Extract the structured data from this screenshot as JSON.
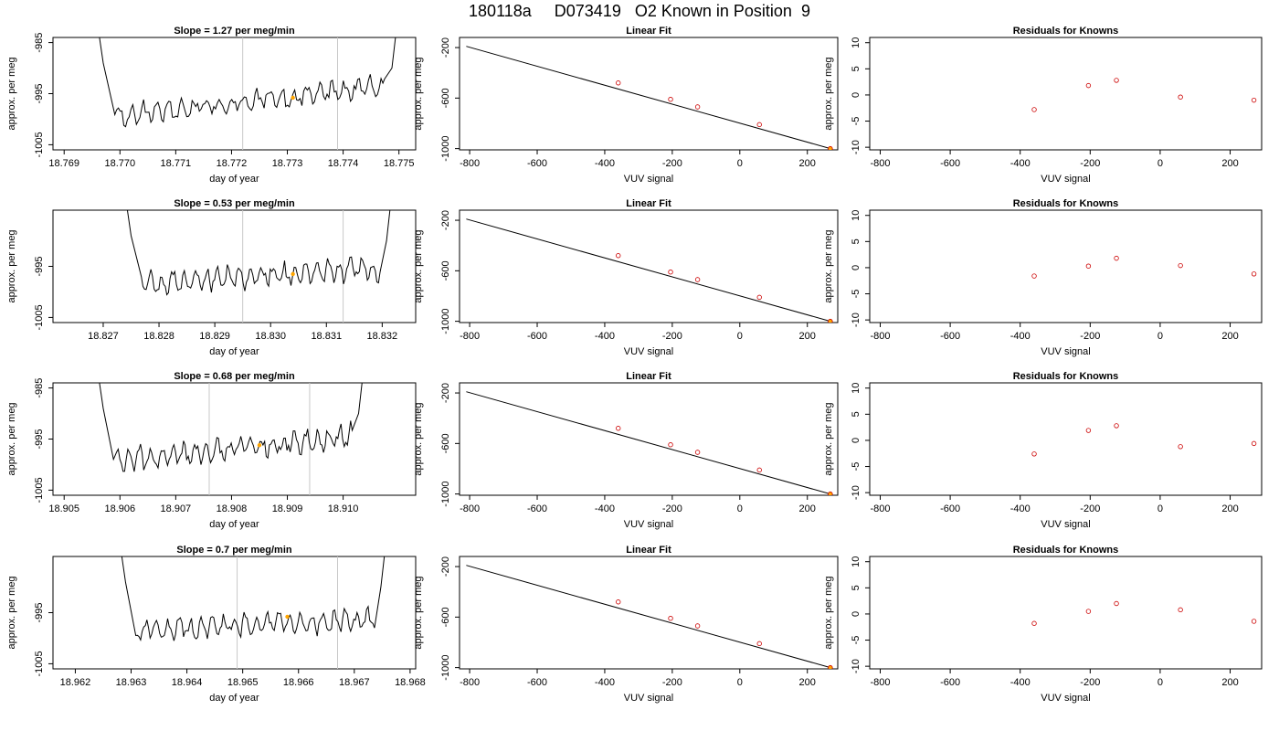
{
  "page_title": "180118a     D073419   O2 Known in Position  9",
  "colors": {
    "trace": "#000000",
    "marker_face": "#ffa500",
    "marker_edge": "#cc0000",
    "cycle_line": "#c8c8c8"
  },
  "chart_data": [
    {
      "type": "line",
      "row": 0,
      "panel": "time",
      "title": "Slope =  1.27  per meg/min",
      "xlabel": "day of year",
      "ylabel": "approx. per meg",
      "xlim": [
        18.7688,
        18.7753
      ],
      "ylim": [
        -1006,
        -984
      ],
      "xticks": [
        "18.769",
        "18.770",
        "18.771",
        "18.772",
        "18.773",
        "18.774",
        "18.775"
      ],
      "yticks": [
        "-985",
        "-995",
        "-1005"
      ],
      "vlines": [
        18.7722,
        18.7739
      ],
      "trace_start": 18.7697,
      "trace_end": 18.7749,
      "trace_level_start": -999.5,
      "trace_level_end": -993.5,
      "marker": {
        "x": 18.7731,
        "y": -995.8
      }
    },
    {
      "type": "scatter",
      "row": 0,
      "panel": "fit",
      "title": "Linear Fit",
      "xlabel": "VUV signal",
      "ylabel": "approx. per meg",
      "xlim": [
        -830,
        290
      ],
      "ylim": [
        -1010,
        -120
      ],
      "xticks": [
        "-800",
        "-600",
        "-400",
        "-200",
        "0",
        "200"
      ],
      "yticks": [
        "-200",
        "-600",
        "-1000"
      ],
      "line": {
        "x": [
          -810,
          268
        ],
        "y": [
          -190,
          -1000
        ]
      },
      "points": {
        "x": [
          -360,
          -205,
          -125,
          58,
          268
        ],
        "y": [
          -480,
          -610,
          -670,
          -810,
          -1000
        ]
      }
    },
    {
      "type": "scatter",
      "row": 0,
      "panel": "residuals",
      "title": "Residuals for Knowns",
      "xlabel": "VUV signal",
      "ylabel": "approx. per meg",
      "xlim": [
        -830,
        290
      ],
      "ylim": [
        -10.5,
        11
      ],
      "xticks": [
        "-800",
        "-600",
        "-400",
        "-200",
        "0",
        "200"
      ],
      "yticks": [
        "10",
        "5",
        "0",
        "-5",
        "-10"
      ],
      "points": {
        "x": [
          -360,
          -205,
          -125,
          58,
          268
        ],
        "y": [
          -2.8,
          1.8,
          2.8,
          -0.4,
          -1.0
        ]
      }
    },
    {
      "type": "line",
      "row": 1,
      "panel": "time",
      "title": "Slope =  0.53  per meg/min",
      "xlabel": "day of year",
      "ylabel": "approx. per meg",
      "xlim": [
        18.8261,
        18.8326
      ],
      "ylim": [
        -1006,
        -984
      ],
      "xticks": [
        "18.827",
        "18.828",
        "18.829",
        "18.830",
        "18.831",
        "18.832"
      ],
      "yticks": [
        "-995",
        "-1005"
      ],
      "vlines": [
        18.8295,
        18.8313
      ],
      "trace_start": 18.8275,
      "trace_end": 18.8321,
      "trace_level_start": -998.5,
      "trace_level_end": -995.5,
      "marker": {
        "x": 18.8304,
        "y": -996.5
      }
    },
    {
      "type": "scatter",
      "row": 1,
      "panel": "fit",
      "title": "Linear Fit",
      "xlabel": "VUV signal",
      "ylabel": "approx. per meg",
      "xlim": [
        -830,
        290
      ],
      "ylim": [
        -1010,
        -120
      ],
      "xticks": [
        "-800",
        "-600",
        "-400",
        "-200",
        "0",
        "200"
      ],
      "yticks": [
        "-200",
        "-600",
        "-1000"
      ],
      "line": {
        "x": [
          -810,
          268
        ],
        "y": [
          -190,
          -1000
        ]
      },
      "points": {
        "x": [
          -360,
          -205,
          -125,
          58,
          268
        ],
        "y": [
          -480,
          -610,
          -670,
          -810,
          -1000
        ]
      }
    },
    {
      "type": "scatter",
      "row": 1,
      "panel": "residuals",
      "title": "Residuals for Knowns",
      "xlabel": "VUV signal",
      "ylabel": "approx. per meg",
      "xlim": [
        -830,
        290
      ],
      "ylim": [
        -10.5,
        11
      ],
      "xticks": [
        "-800",
        "-600",
        "-400",
        "-200",
        "0",
        "200"
      ],
      "yticks": [
        "10",
        "5",
        "0",
        "-5",
        "-10"
      ],
      "points": {
        "x": [
          -360,
          -205,
          -125,
          58,
          268
        ],
        "y": [
          -1.6,
          0.3,
          1.8,
          0.4,
          -1.2
        ]
      }
    },
    {
      "type": "line",
      "row": 2,
      "panel": "time",
      "title": "Slope =  0.68  per meg/min",
      "xlabel": "day of year",
      "ylabel": "approx. per meg",
      "xlim": [
        18.9048,
        18.9113
      ],
      "ylim": [
        -1006,
        -984
      ],
      "xticks": [
        "18.905",
        "18.906",
        "18.907",
        "18.908",
        "18.909",
        "18.910"
      ],
      "yticks": [
        "-985",
        "-995",
        "-1005"
      ],
      "vlines": [
        18.9076,
        18.9094
      ],
      "trace_start": 18.9057,
      "trace_end": 18.9103,
      "trace_level_start": -999.5,
      "trace_level_end": -994.5,
      "marker": {
        "x": 18.9085,
        "y": -996.2
      }
    },
    {
      "type": "scatter",
      "row": 2,
      "panel": "fit",
      "title": "Linear Fit",
      "xlabel": "VUV signal",
      "ylabel": "approx. per meg",
      "xlim": [
        -830,
        290
      ],
      "ylim": [
        -1010,
        -120
      ],
      "xticks": [
        "-800",
        "-600",
        "-400",
        "-200",
        "0",
        "200"
      ],
      "yticks": [
        "-200",
        "-600",
        "-1000"
      ],
      "line": {
        "x": [
          -810,
          268
        ],
        "y": [
          -190,
          -1000
        ]
      },
      "points": {
        "x": [
          -360,
          -205,
          -125,
          58,
          268
        ],
        "y": [
          -480,
          -610,
          -670,
          -810,
          -1000
        ]
      }
    },
    {
      "type": "scatter",
      "row": 2,
      "panel": "residuals",
      "title": "Residuals for Knowns",
      "xlabel": "VUV signal",
      "ylabel": "approx. per meg",
      "xlim": [
        -830,
        290
      ],
      "ylim": [
        -10.5,
        11
      ],
      "xticks": [
        "-800",
        "-600",
        "-400",
        "-200",
        "0",
        "200"
      ],
      "yticks": [
        "10",
        "5",
        "0",
        "-5",
        "-10"
      ],
      "points": {
        "x": [
          -360,
          -205,
          -125,
          58,
          268
        ],
        "y": [
          -2.6,
          1.9,
          2.8,
          -1.2,
          -0.6
        ]
      }
    },
    {
      "type": "line",
      "row": 3,
      "panel": "time",
      "title": "Slope =  0.7  per meg/min",
      "xlabel": "day of year",
      "ylabel": "approx. per meg",
      "xlim": [
        18.9616,
        18.9681
      ],
      "ylim": [
        -1006,
        -984
      ],
      "xticks": [
        "18.962",
        "18.963",
        "18.964",
        "18.965",
        "18.966",
        "18.967",
        "18.968"
      ],
      "yticks": [
        "-995",
        "-1005"
      ],
      "vlines": [
        18.9649,
        18.9667
      ],
      "trace_start": 18.9629,
      "trace_end": 18.9675,
      "trace_level_start": -998.5,
      "trace_level_end": -996.0,
      "marker": {
        "x": 18.9658,
        "y": -995.8
      }
    },
    {
      "type": "scatter",
      "row": 3,
      "panel": "fit",
      "title": "Linear Fit",
      "xlabel": "VUV signal",
      "ylabel": "approx. per meg",
      "xlim": [
        -830,
        290
      ],
      "ylim": [
        -1010,
        -120
      ],
      "xticks": [
        "-800",
        "-600",
        "-400",
        "-200",
        "0",
        "200"
      ],
      "yticks": [
        "-200",
        "-600",
        "-1000"
      ],
      "line": {
        "x": [
          -810,
          268
        ],
        "y": [
          -190,
          -1000
        ]
      },
      "points": {
        "x": [
          -360,
          -205,
          -125,
          58,
          268
        ],
        "y": [
          -480,
          -610,
          -670,
          -810,
          -1000
        ]
      }
    },
    {
      "type": "scatter",
      "row": 3,
      "panel": "residuals",
      "title": "Residuals for Knowns",
      "xlabel": "VUV signal",
      "ylabel": "approx. per meg",
      "xlim": [
        -830,
        290
      ],
      "ylim": [
        -10.5,
        11
      ],
      "xticks": [
        "-800",
        "-600",
        "-400",
        "-200",
        "0",
        "200"
      ],
      "yticks": [
        "10",
        "5",
        "0",
        "-5",
        "-10"
      ],
      "points": {
        "x": [
          -360,
          -205,
          -125,
          58,
          268
        ],
        "y": [
          -1.8,
          0.5,
          2.0,
          0.8,
          -1.4
        ]
      }
    }
  ]
}
